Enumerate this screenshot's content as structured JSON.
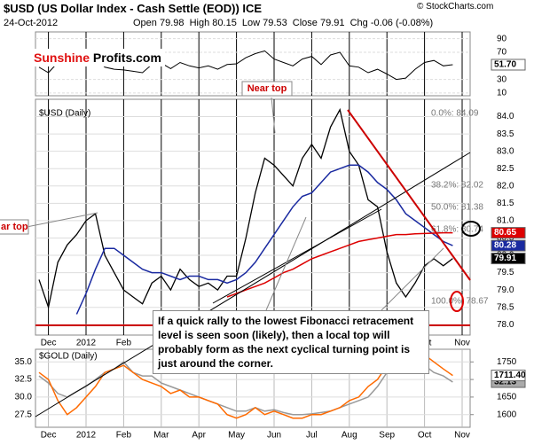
{
  "header": {
    "title": "$USD (US Dollar Index - Cash Settle (EOD)) ICE",
    "date": "24-Oct-2012",
    "ohlc": "Open 79.98  High 80.15  Low 79.53  Close 79.91  Chg -0.06 (-0.08%)",
    "source": "© StockCharts.com"
  },
  "logo": {
    "part1": "Sunshine",
    "part2": "Profits.com"
  },
  "note": "If a quick rally to the lowest Fibonacci retracement level is seen soon (likely), then a local top will probably form as the next cyclical turning point is just around the corner.",
  "chart_data": [
    {
      "type": "line",
      "ylim": [
        6,
        100
      ],
      "yticks": [
        90,
        70,
        30,
        10
      ],
      "color": "#000000",
      "values": [
        48,
        40,
        55,
        58,
        56,
        60,
        62,
        48,
        45,
        44,
        42,
        40,
        52,
        54,
        46,
        55,
        50,
        47,
        50,
        45,
        52,
        53,
        62,
        68,
        72,
        60,
        55,
        50,
        60,
        64,
        52,
        66,
        70,
        50,
        48,
        40,
        45,
        38,
        30,
        32,
        45,
        55,
        58,
        50,
        51.7,
        null
      ],
      "last_label": "51.70"
    },
    {
      "type": "line",
      "title": "$USD (Daily)",
      "ylim": [
        77.7,
        84.5
      ],
      "yticks": [
        {
          "value": 78.0,
          "label": "78.0"
        },
        {
          "value": 78.5,
          "label": "78.5"
        },
        {
          "value": 79.0,
          "label": "79.0"
        },
        {
          "value": 79.5,
          "label": "79.5"
        },
        {
          "value": 80.0,
          "label": "80.0"
        },
        {
          "value": 80.5,
          "label": "80.5"
        },
        {
          "value": 81.0,
          "label": "81.0"
        },
        {
          "value": 81.5,
          "label": "81.5"
        },
        {
          "value": 82.0,
          "label": "82.0"
        },
        {
          "value": 82.5,
          "label": "82.5"
        },
        {
          "value": 83.0,
          "label": "83.0"
        },
        {
          "value": 83.5,
          "label": "83.5"
        },
        {
          "value": 84.0,
          "label": "84.0"
        }
      ],
      "categories": [
        null,
        "Dec",
        null,
        null,
        null,
        "2012",
        null,
        null,
        null,
        "Feb",
        null,
        null,
        null,
        "Mar",
        null,
        null,
        null,
        "Apr",
        null,
        null,
        null,
        "May",
        null,
        null,
        null,
        "Jun",
        null,
        null,
        null,
        "Jul",
        null,
        null,
        null,
        "Aug",
        null,
        null,
        null,
        "Sep",
        null,
        null,
        null,
        "Oct",
        null,
        null,
        null,
        "Nov"
      ],
      "series": [
        {
          "color": "#000000",
          "values": [
            79.3,
            78.5,
            79.8,
            80.3,
            80.6,
            81.0,
            81.2,
            80.0,
            79.5,
            79.0,
            78.8,
            78.6,
            79.2,
            79.4,
            79.0,
            79.6,
            79.3,
            79.1,
            79.2,
            79.0,
            79.4,
            79.4,
            80.5,
            81.8,
            82.8,
            82.6,
            82.3,
            82.0,
            82.8,
            83.2,
            82.8,
            83.7,
            84.2,
            83.0,
            82.6,
            81.6,
            81.4,
            80.1,
            79.2,
            78.8,
            79.2,
            79.7,
            79.9,
            79.7,
            79.91,
            null
          ]
        },
        {
          "color": "#1a2aa0",
          "values": [
            null,
            null,
            null,
            null,
            78.3,
            78.9,
            79.6,
            80.2,
            80.2,
            80.0,
            79.8,
            79.6,
            79.5,
            79.5,
            79.4,
            79.3,
            79.4,
            79.4,
            79.3,
            79.3,
            79.2,
            79.3,
            79.5,
            79.8,
            80.2,
            80.6,
            81.0,
            81.4,
            81.7,
            81.8,
            82.1,
            82.4,
            82.5,
            82.6,
            82.6,
            82.4,
            82.1,
            81.9,
            81.6,
            81.2,
            81.0,
            80.8,
            80.6,
            80.4,
            80.28,
            null
          ]
        },
        {
          "color": "#dd0000",
          "values": [
            null,
            null,
            null,
            null,
            null,
            null,
            null,
            null,
            null,
            null,
            null,
            null,
            null,
            null,
            null,
            null,
            null,
            null,
            null,
            null,
            78.8,
            78.9,
            79.0,
            79.1,
            79.2,
            79.35,
            79.5,
            79.6,
            79.75,
            79.9,
            80.0,
            80.1,
            80.2,
            80.3,
            80.4,
            80.45,
            80.5,
            80.55,
            80.6,
            80.6,
            80.62,
            80.63,
            80.64,
            80.65,
            80.65,
            null
          ]
        }
      ],
      "fib_levels": [
        {
          "value": 84.09,
          "label": "0.0%: 84.09"
        },
        {
          "value": 82.02,
          "label": "38.2%: 82.02"
        },
        {
          "value": 81.38,
          "label": "50.0%: 81.38"
        },
        {
          "value": 80.74,
          "label": "61.8%: 80.74"
        },
        {
          "value": 78.67,
          "label": "100.0%: 78.67"
        }
      ],
      "annotations": [
        "Near top",
        "ar top"
      ]
    },
    {
      "type": "line",
      "title": "$GOLD (Daily)",
      "ylim": [
        25.7,
        36.8
      ],
      "y2lim": [
        1564,
        1786
      ],
      "yticks": [
        {
          "value": 27.5,
          "label": "27.5"
        },
        {
          "value": 30.0,
          "label": "30.0"
        },
        {
          "value": 32.5,
          "label": "32.5"
        },
        {
          "value": 35.0,
          "label": "35.0"
        }
      ],
      "y2ticks": [
        1600,
        1650,
        1700,
        1750
      ],
      "categories": [
        null,
        "Dec",
        null,
        null,
        null,
        "2012",
        null,
        null,
        null,
        "Feb",
        null,
        null,
        null,
        "Mar",
        null,
        null,
        null,
        "Apr",
        null,
        null,
        null,
        "May",
        null,
        null,
        null,
        "Jun",
        null,
        null,
        null,
        "Jul",
        null,
        null,
        null,
        "Aug",
        null,
        null,
        null,
        "Sep",
        null,
        null,
        null,
        "Oct",
        null,
        null,
        null,
        "Nov"
      ],
      "series": [
        {
          "color": "#999999",
          "values": [
            33.0,
            32.0,
            30.5,
            30.0,
            30.8,
            31.5,
            32.5,
            33.5,
            34.0,
            35.0,
            33.5,
            33.0,
            33.0,
            32.0,
            31.5,
            31.0,
            30.5,
            30.0,
            29.5,
            29.0,
            28.5,
            28.0,
            28.0,
            28.5,
            28.0,
            28.2,
            27.8,
            27.5,
            27.5,
            27.6,
            27.8,
            28.0,
            28.5,
            29.0,
            29.5,
            30.0,
            31.5,
            33.5,
            34.0,
            34.5,
            34.5,
            34.5,
            33.5,
            33.0,
            32.13,
            null
          ]
        },
        {
          "color": "#ff6a00",
          "axis": "y2",
          "values": [
            1720,
            1700,
            1640,
            1600,
            1620,
            1650,
            1680,
            1720,
            1730,
            1740,
            1720,
            1700,
            1690,
            1680,
            1660,
            1670,
            1650,
            1650,
            1640,
            1630,
            1600,
            1590,
            1600,
            1620,
            1600,
            1610,
            1600,
            1590,
            1590,
            1600,
            1600,
            1610,
            1620,
            1640,
            1650,
            1680,
            1700,
            1740,
            1770,
            1775,
            1780,
            1770,
            1750,
            1730,
            1711.4,
            null
          ],
          "last_label": "1711.40"
        }
      ]
    }
  ]
}
